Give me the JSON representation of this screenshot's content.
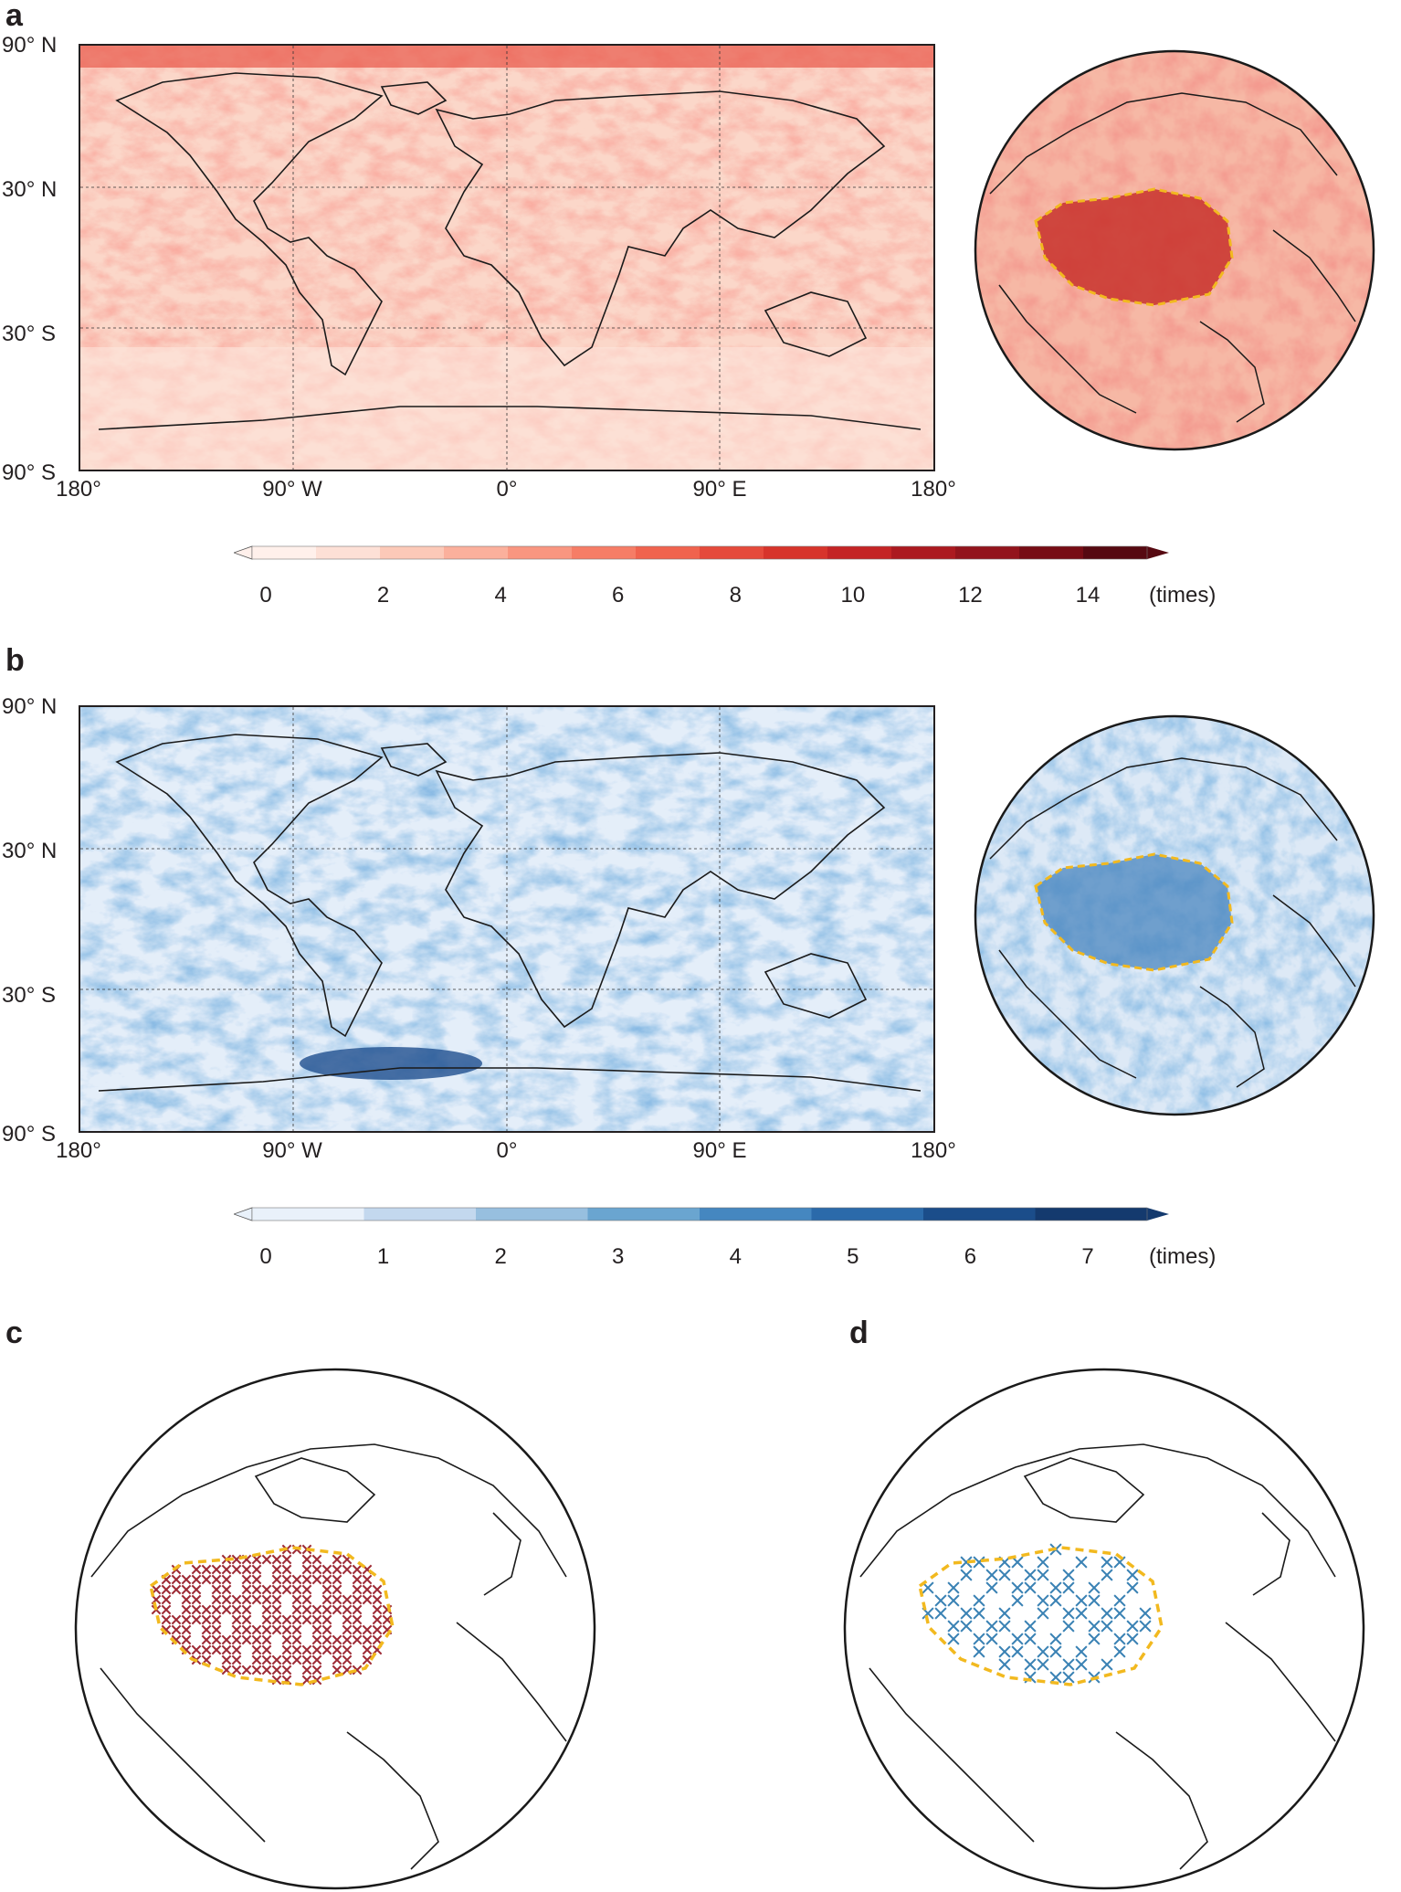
{
  "panels": {
    "a": {
      "letter": "a",
      "lat_labels": [
        "90° N",
        "30° N",
        "30° S",
        "90° S"
      ],
      "lon_labels": [
        "180°",
        "90° W",
        "0°",
        "90° E",
        "180°"
      ],
      "colorbar": {
        "ticks": [
          "0",
          "2",
          "4",
          "6",
          "8",
          "10",
          "12",
          "14"
        ],
        "unit": "(times)",
        "levels": [
          0,
          14
        ],
        "colors": [
          "#fff0eb",
          "#fde0d6",
          "#fcc9b8",
          "#fbb09c",
          "#f99680",
          "#f67d66",
          "#f0634e",
          "#e54a3b",
          "#d7342b",
          "#c42425",
          "#ac1a20",
          "#93141c",
          "#770d15",
          "#560911"
        ]
      },
      "legend_region": "Tibetan Plateau outline (dashed)"
    },
    "b": {
      "letter": "b",
      "lat_labels": [
        "90° N",
        "30° N",
        "30° S",
        "90° S"
      ],
      "lon_labels": [
        "180°",
        "90° W",
        "0°",
        "90° E",
        "180°"
      ],
      "colorbar": {
        "ticks": [
          "0",
          "1",
          "2",
          "3",
          "4",
          "5",
          "6",
          "7"
        ],
        "unit": "(times)",
        "levels": [
          0,
          7
        ],
        "colors": [
          "#e9f1fa",
          "#c3d8ee",
          "#97bfdf",
          "#6aa5d0",
          "#4587c0",
          "#2b6aaa",
          "#1b4d8a",
          "#143a6e"
        ]
      }
    },
    "c": {
      "letter": "c",
      "marker_color": "#9e2a35"
    },
    "d": {
      "letter": "d",
      "marker_color": "#3a82b4"
    },
    "outline_color": "#f2b91f"
  }
}
